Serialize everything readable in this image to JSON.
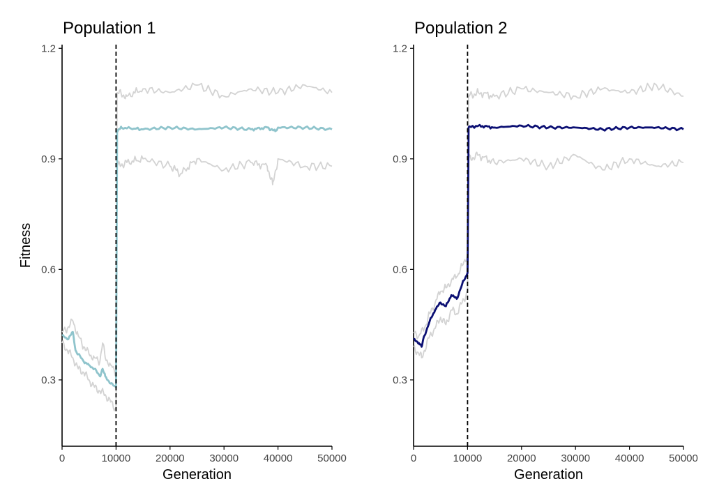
{
  "chart_data": [
    {
      "type": "line",
      "title": "Population 1",
      "xlabel": "Generation",
      "ylabel": "Fitness",
      "xlim": [
        0,
        50000
      ],
      "ylim": [
        0.12,
        1.21
      ],
      "xticks": [
        "0",
        "10000",
        "20000",
        "30000",
        "40000",
        "50000"
      ],
      "yticks": [
        "0.3",
        "0.6",
        "0.9",
        "1.2"
      ],
      "grid": false,
      "legend": "none",
      "vline_x": 10000,
      "series": [
        {
          "role": "mean",
          "color": "#8fc4cc",
          "x": [
            0,
            1000,
            2000,
            2500,
            3000,
            4000,
            5000,
            6000,
            7000,
            7500,
            8000,
            9000,
            9999,
            10200,
            11000,
            15000,
            20000,
            25000,
            30000,
            35000,
            38000,
            39500,
            40000,
            45000,
            50000
          ],
          "y": [
            0.42,
            0.41,
            0.43,
            0.38,
            0.37,
            0.35,
            0.34,
            0.33,
            0.31,
            0.33,
            0.31,
            0.29,
            0.28,
            0.975,
            0.985,
            0.98,
            0.985,
            0.98,
            0.985,
            0.98,
            0.985,
            0.975,
            0.985,
            0.985,
            0.98
          ]
        },
        {
          "role": "upper",
          "color": "#d3d3d3",
          "x": [
            0,
            1000,
            2000,
            3000,
            4000,
            5000,
            6000,
            7000,
            7500,
            8000,
            9000,
            9999,
            10200,
            12000,
            15000,
            20000,
            25000,
            30000,
            35000,
            40000,
            45000,
            50000
          ],
          "y": [
            0.43,
            0.44,
            0.46,
            0.42,
            0.39,
            0.37,
            0.36,
            0.35,
            0.4,
            0.36,
            0.34,
            0.32,
            1.08,
            1.07,
            1.09,
            1.08,
            1.1,
            1.07,
            1.09,
            1.08,
            1.1,
            1.08
          ]
        },
        {
          "role": "lower",
          "color": "#d3d3d3",
          "x": [
            0,
            1000,
            2000,
            3000,
            4000,
            5000,
            6000,
            7000,
            8000,
            9000,
            9999,
            10200,
            12000,
            15000,
            20000,
            22000,
            25000,
            30000,
            35000,
            38000,
            39000,
            40000,
            45000,
            50000
          ],
          "y": [
            0.4,
            0.38,
            0.36,
            0.33,
            0.32,
            0.3,
            0.28,
            0.27,
            0.26,
            0.24,
            0.22,
            0.88,
            0.89,
            0.9,
            0.88,
            0.86,
            0.9,
            0.87,
            0.89,
            0.88,
            0.83,
            0.9,
            0.88,
            0.88
          ]
        }
      ]
    },
    {
      "type": "line",
      "title": "Population 2",
      "xlabel": "Generation",
      "ylabel": "",
      "xlim": [
        0,
        50000
      ],
      "ylim": [
        0.12,
        1.21
      ],
      "xticks": [
        "0",
        "10000",
        "20000",
        "30000",
        "40000",
        "50000"
      ],
      "yticks": [
        "0.3",
        "0.6",
        "0.9",
        "1.2"
      ],
      "grid": false,
      "legend": "none",
      "vline_x": 10000,
      "series": [
        {
          "role": "mean",
          "color": "#0b0f73",
          "x": [
            0,
            1000,
            1500,
            2000,
            3000,
            4000,
            5000,
            6000,
            7000,
            8000,
            9000,
            9999,
            10200,
            12000,
            15000,
            20000,
            25000,
            30000,
            35000,
            40000,
            45000,
            50000
          ],
          "y": [
            0.41,
            0.4,
            0.39,
            0.42,
            0.46,
            0.49,
            0.51,
            0.5,
            0.53,
            0.52,
            0.56,
            0.59,
            0.985,
            0.99,
            0.985,
            0.99,
            0.985,
            0.985,
            0.98,
            0.985,
            0.985,
            0.98
          ]
        },
        {
          "role": "upper",
          "color": "#d3d3d3",
          "x": [
            0,
            1000,
            2000,
            3000,
            4000,
            5000,
            6000,
            7000,
            8000,
            9000,
            9999,
            10200,
            12000,
            15000,
            20000,
            25000,
            30000,
            35000,
            40000,
            45000,
            50000
          ],
          "y": [
            0.43,
            0.42,
            0.44,
            0.48,
            0.51,
            0.54,
            0.55,
            0.57,
            0.58,
            0.61,
            0.64,
            1.07,
            1.08,
            1.07,
            1.09,
            1.08,
            1.07,
            1.09,
            1.08,
            1.1,
            1.07
          ]
        },
        {
          "role": "lower",
          "color": "#d3d3d3",
          "x": [
            0,
            1000,
            1500,
            2000,
            3000,
            4000,
            5000,
            6000,
            7000,
            8000,
            9000,
            9999,
            10200,
            12000,
            15000,
            20000,
            25000,
            30000,
            35000,
            40000,
            45000,
            50000
          ],
          "y": [
            0.39,
            0.37,
            0.36,
            0.38,
            0.42,
            0.44,
            0.47,
            0.45,
            0.49,
            0.48,
            0.51,
            0.54,
            0.9,
            0.91,
            0.89,
            0.9,
            0.88,
            0.91,
            0.87,
            0.9,
            0.88,
            0.89
          ]
        }
      ]
    }
  ]
}
